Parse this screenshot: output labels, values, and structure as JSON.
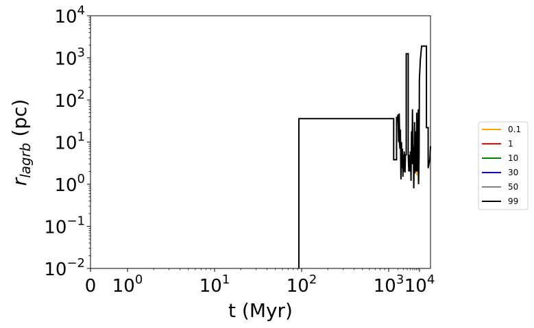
{
  "chart_data": {
    "type": "line",
    "title": "",
    "xlabel": "t (Myr)",
    "ylabel_main": "r",
    "ylabel_sub": "lagrb",
    "ylabel_unit": " (pc)",
    "x_scale": "symlog",
    "y_scale": "log",
    "xlim": [
      0,
      13000
    ],
    "ylim": [
      0.01,
      10000
    ],
    "x_ticks": [
      {
        "value": 0,
        "base": "0",
        "exp": ""
      },
      {
        "value": 1,
        "base": "10",
        "exp": "0"
      },
      {
        "value": 10,
        "base": "10",
        "exp": "1"
      },
      {
        "value": 100,
        "base": "10",
        "exp": "2"
      },
      {
        "value": 1000,
        "base": "10",
        "exp": "3"
      },
      {
        "value": 10000,
        "base": "10",
        "exp": "4"
      }
    ],
    "y_ticks": [
      {
        "value": 0.01,
        "base": "10",
        "exp": "−2"
      },
      {
        "value": 0.1,
        "base": "10",
        "exp": "−1"
      },
      {
        "value": 1,
        "base": "10",
        "exp": "0"
      },
      {
        "value": 10,
        "base": "10",
        "exp": "1"
      },
      {
        "value": 100,
        "base": "10",
        "exp": "2"
      },
      {
        "value": 1000,
        "base": "10",
        "exp": "3"
      },
      {
        "value": 10000,
        "base": "10",
        "exp": "4"
      }
    ],
    "grid": false,
    "legend_position": "right-outside",
    "series": [
      {
        "name": "0.1",
        "color": "#ffa500",
        "points": [
          [
            6500,
            2.0
          ],
          [
            6900,
            3.2
          ],
          [
            7300,
            2.4
          ],
          [
            7800,
            3.6
          ],
          [
            8300,
            1.6
          ],
          [
            8800,
            2.6
          ],
          [
            9300,
            1.0
          ]
        ]
      },
      {
        "name": "1",
        "color": "#ff0000",
        "points": []
      },
      {
        "name": "10",
        "color": "#008000",
        "points": []
      },
      {
        "name": "30",
        "color": "#0000ff",
        "points": [
          [
            2000,
            42
          ],
          [
            2150,
            12
          ],
          [
            2300,
            8
          ]
        ]
      },
      {
        "name": "50",
        "color": "#808080",
        "points": []
      },
      {
        "name": "99",
        "color": "#000000",
        "points": [
          [
            93,
            0.01
          ],
          [
            93,
            36
          ],
          [
            1450,
            36
          ],
          [
            1450,
            3.8
          ],
          [
            1800,
            3.8
          ],
          [
            1800,
            40
          ],
          [
            1900,
            32
          ],
          [
            2000,
            45
          ],
          [
            2100,
            10
          ],
          [
            2200,
            48
          ],
          [
            2300,
            7
          ],
          [
            2400,
            20
          ],
          [
            2500,
            1.3
          ],
          [
            2600,
            10
          ],
          [
            2700,
            2.4
          ],
          [
            2800,
            7
          ],
          [
            2900,
            1.5
          ],
          [
            3000,
            5
          ],
          [
            3100,
            2
          ],
          [
            3200,
            6
          ],
          [
            3300,
            2.5
          ],
          [
            3400,
            1.9
          ],
          [
            3500,
            5
          ],
          [
            3700,
            5
          ],
          [
            3700,
            1250
          ],
          [
            4300,
            1250
          ],
          [
            4300,
            5
          ],
          [
            4500,
            2
          ],
          [
            4700,
            5
          ],
          [
            4900,
            2
          ],
          [
            5100,
            6
          ],
          [
            5300,
            1.2
          ],
          [
            5500,
            18
          ],
          [
            5700,
            3
          ],
          [
            5900,
            60
          ],
          [
            6100,
            3
          ],
          [
            6300,
            8
          ],
          [
            6500,
            0.8
          ],
          [
            6700,
            4
          ],
          [
            6900,
            30
          ],
          [
            7100,
            1.8
          ],
          [
            7300,
            12
          ],
          [
            7500,
            3
          ],
          [
            7700,
            18
          ],
          [
            7900,
            2
          ],
          [
            8100,
            50
          ],
          [
            8300,
            2
          ],
          [
            8600,
            35
          ],
          [
            8800,
            2
          ],
          [
            9100,
            60
          ],
          [
            9300,
            1
          ],
          [
            9700,
            5
          ],
          [
            9900,
            300
          ],
          [
            10200,
            900
          ],
          [
            10500,
            1900
          ],
          [
            11800,
            1900
          ],
          [
            11800,
            22
          ],
          [
            12300,
            22
          ],
          [
            12300,
            2.4
          ],
          [
            12800,
            4
          ],
          [
            13000,
            8
          ]
        ]
      }
    ]
  }
}
